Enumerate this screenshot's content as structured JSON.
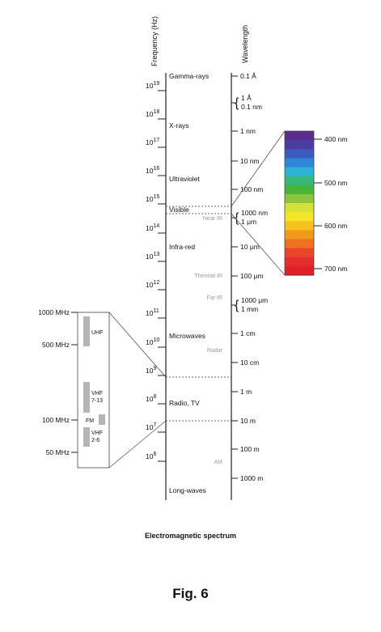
{
  "axis_labels": {
    "frequency": "Frequency (Hz)",
    "wavelength": "Wavelength"
  },
  "frequency_ticks": [
    {
      "base": "10",
      "exp": "19"
    },
    {
      "base": "10",
      "exp": "18"
    },
    {
      "base": "10",
      "exp": "17"
    },
    {
      "base": "10",
      "exp": "16"
    },
    {
      "base": "10",
      "exp": "15"
    },
    {
      "base": "10",
      "exp": "14"
    },
    {
      "base": "10",
      "exp": "13"
    },
    {
      "base": "10",
      "exp": "12"
    },
    {
      "base": "10",
      "exp": "11"
    },
    {
      "base": "10",
      "exp": "10"
    },
    {
      "base": "10",
      "exp": "9"
    },
    {
      "base": "10",
      "exp": "8"
    },
    {
      "base": "10",
      "exp": "7"
    },
    {
      "base": "10",
      "exp": "6"
    }
  ],
  "regions": [
    "Gamma-rays",
    "X-rays",
    "Ultraviolet",
    "Visible",
    "Infra-red",
    "Microwaves",
    "Radio, TV",
    "Long-waves"
  ],
  "sub_regions": [
    "Near IR",
    "Thermal IR",
    "Far IR",
    "Radar",
    "AM"
  ],
  "wavelength_ticks": {
    "single": [
      "0.1 Å",
      "1 nm",
      "10 nm",
      "100 nm",
      "10 μm",
      "100 μm",
      "1 cm",
      "10 cm",
      "1 m",
      "10 m",
      "100 m",
      "1000 m"
    ],
    "braces": [
      [
        "1 Å",
        "0.1 nm"
      ],
      [
        "1000 nm",
        "1 μm"
      ],
      [
        "1000 μm",
        "1 mm"
      ]
    ]
  },
  "visible_spectrum": {
    "labels": [
      "400 nm",
      "500 nm",
      "600 nm",
      "700 nm"
    ],
    "colors": [
      "#5b2d8e",
      "#4a3da0",
      "#3a5bc0",
      "#2f86d6",
      "#2fb3d4",
      "#35b87a",
      "#46b53a",
      "#8cc63e",
      "#d6e03a",
      "#f4e626",
      "#f6c21f",
      "#f29a1f",
      "#ee7022",
      "#e9452a",
      "#e42d2d",
      "#e02028"
    ]
  },
  "radio_zoom": {
    "labels": [
      "1000 MHz",
      "500 MHz",
      "100 MHz",
      "50 MHz"
    ],
    "bands": [
      "UHF",
      "VHF 7-13",
      "FM",
      "VHF 2-6"
    ]
  },
  "caption": "Electromagnetic spectrum",
  "figure_label": "Fig. 6"
}
